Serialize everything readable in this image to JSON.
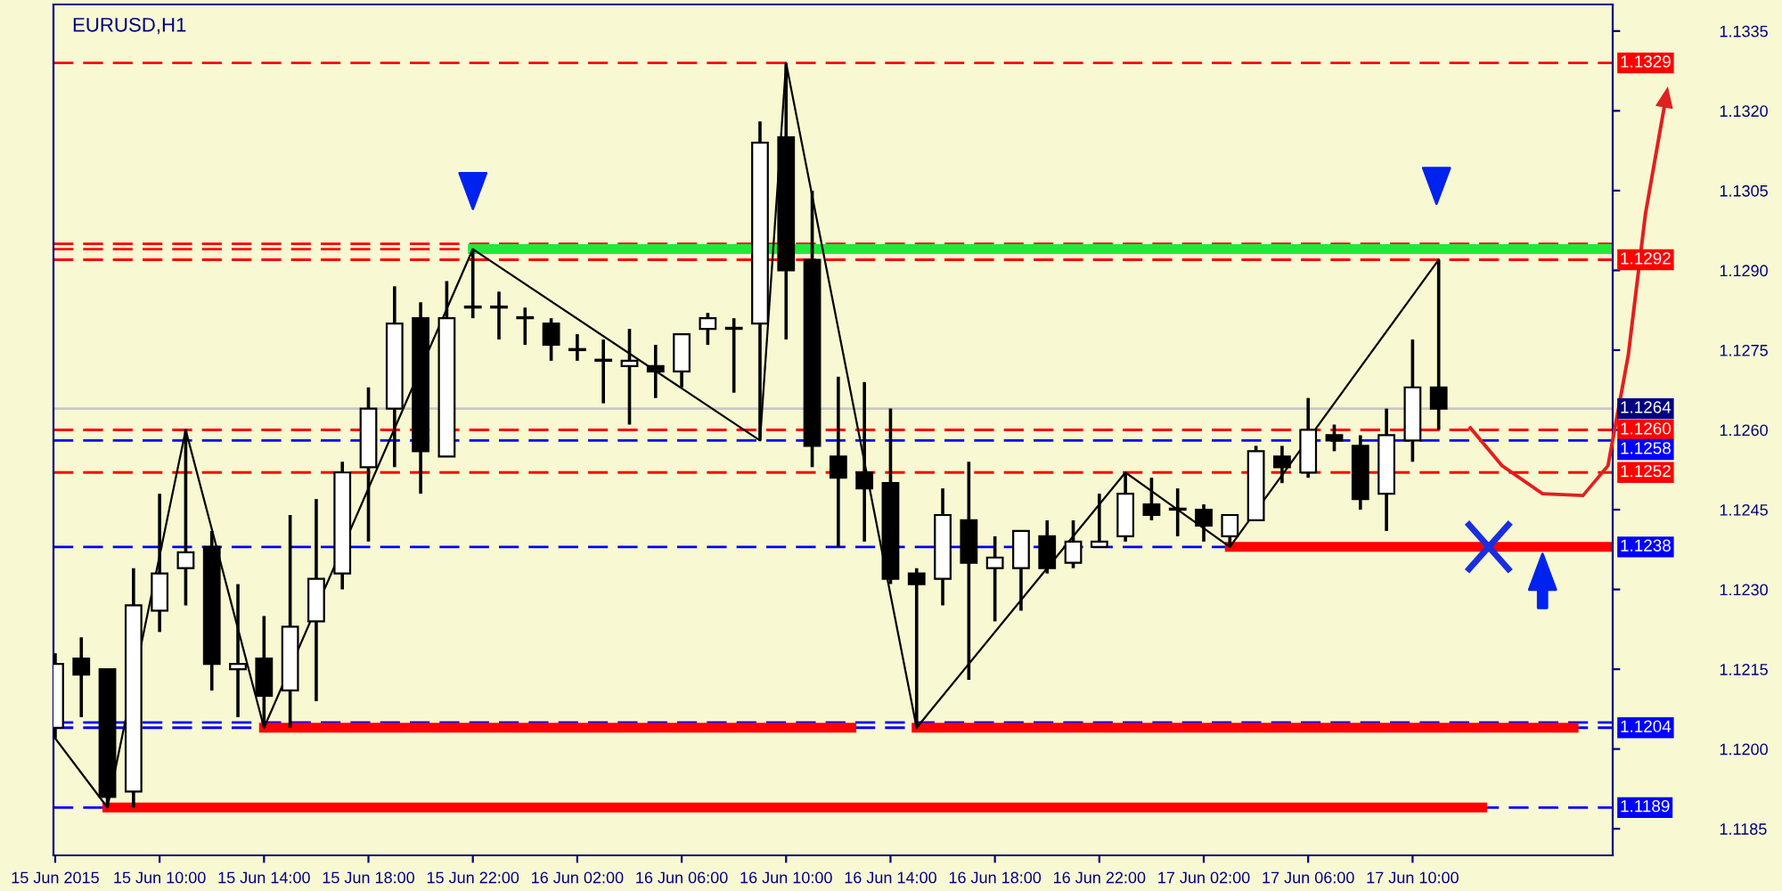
{
  "chart_data": {
    "type": "candlestick",
    "title": "EURUSD,H1",
    "color": "#000000",
    "x": [
      "2015-06-15T06:00",
      "2015-06-15T07:00",
      "2015-06-15T08:00",
      "2015-06-15T09:00",
      "2015-06-15T10:00",
      "2015-06-15T11:00",
      "2015-06-15T12:00",
      "2015-06-15T13:00",
      "2015-06-15T14:00",
      "2015-06-15T15:00",
      "2015-06-15T16:00",
      "2015-06-15T17:00",
      "2015-06-15T18:00",
      "2015-06-15T19:00",
      "2015-06-15T20:00",
      "2015-06-15T21:00",
      "2015-06-15T22:00",
      "2015-06-15T23:00",
      "2015-06-16T00:00",
      "2015-06-16T01:00",
      "2015-06-16T02:00",
      "2015-06-16T03:00",
      "2015-06-16T04:00",
      "2015-06-16T05:00",
      "2015-06-16T06:00",
      "2015-06-16T07:00",
      "2015-06-16T08:00",
      "2015-06-16T09:00",
      "2015-06-16T10:00",
      "2015-06-16T11:00",
      "2015-06-16T12:00",
      "2015-06-16T13:00",
      "2015-06-16T14:00",
      "2015-06-16T15:00",
      "2015-06-16T16:00",
      "2015-06-16T17:00",
      "2015-06-16T18:00",
      "2015-06-16T19:00",
      "2015-06-16T20:00",
      "2015-06-16T21:00",
      "2015-06-16T22:00",
      "2015-06-16T23:00",
      "2015-06-17T00:00",
      "2015-06-17T01:00",
      "2015-06-17T02:00",
      "2015-06-17T03:00",
      "2015-06-17T04:00",
      "2015-06-17T05:00",
      "2015-06-17T06:00",
      "2015-06-17T07:00",
      "2015-06-17T08:00",
      "2015-06-17T09:00",
      "2015-06-17T10:00",
      "2015-06-17T11:00"
    ],
    "ohlc": [
      [
        1.1204,
        1.1218,
        1.1202,
        1.1216
      ],
      [
        1.1217,
        1.1221,
        1.1206,
        1.1214
      ],
      [
        1.1215,
        1.1215,
        1.1189,
        1.1191
      ],
      [
        1.1192,
        1.1234,
        1.1189,
        1.1227
      ],
      [
        1.1226,
        1.1248,
        1.1222,
        1.1233
      ],
      [
        1.1234,
        1.126,
        1.1227,
        1.1237
      ],
      [
        1.1238,
        1.1241,
        1.1211,
        1.1216
      ],
      [
        1.1215,
        1.1231,
        1.1206,
        1.1216
      ],
      [
        1.1217,
        1.1225,
        1.1204,
        1.121
      ],
      [
        1.1211,
        1.1244,
        1.1204,
        1.1223
      ],
      [
        1.1224,
        1.1247,
        1.1209,
        1.1232
      ],
      [
        1.1233,
        1.1254,
        1.123,
        1.1252
      ],
      [
        1.1253,
        1.1268,
        1.1239,
        1.1264
      ],
      [
        1.1264,
        1.1287,
        1.1253,
        1.128
      ],
      [
        1.1281,
        1.1284,
        1.1248,
        1.1256
      ],
      [
        1.1255,
        1.1288,
        1.1255,
        1.1281
      ],
      [
        1.1283,
        1.1294,
        1.1281,
        1.1283
      ],
      [
        1.1283,
        1.1286,
        1.1277,
        1.1283
      ],
      [
        1.1281,
        1.1283,
        1.1276,
        1.1281
      ],
      [
        1.128,
        1.1281,
        1.1273,
        1.1276
      ],
      [
        1.1275,
        1.1278,
        1.1273,
        1.1275
      ],
      [
        1.1273,
        1.1277,
        1.1265,
        1.1273
      ],
      [
        1.1272,
        1.1279,
        1.1261,
        1.1273
      ],
      [
        1.1272,
        1.1276,
        1.1266,
        1.1271
      ],
      [
        1.1271,
        1.1278,
        1.1268,
        1.1278
      ],
      [
        1.1279,
        1.1282,
        1.1276,
        1.1281
      ],
      [
        1.1279,
        1.1281,
        1.1267,
        1.1279
      ],
      [
        1.128,
        1.1318,
        1.1258,
        1.1314
      ],
      [
        1.1315,
        1.1329,
        1.1277,
        1.129
      ],
      [
        1.1292,
        1.1305,
        1.1253,
        1.1257
      ],
      [
        1.1255,
        1.127,
        1.1238,
        1.1251
      ],
      [
        1.1252,
        1.1269,
        1.1239,
        1.1249
      ],
      [
        1.125,
        1.1264,
        1.1231,
        1.1232
      ],
      [
        1.1233,
        1.1234,
        1.1204,
        1.1231
      ],
      [
        1.1232,
        1.1249,
        1.1227,
        1.1244
      ],
      [
        1.1243,
        1.1254,
        1.1213,
        1.1235
      ],
      [
        1.1234,
        1.124,
        1.1224,
        1.1236
      ],
      [
        1.1234,
        1.1241,
        1.1226,
        1.1241
      ],
      [
        1.124,
        1.1243,
        1.1233,
        1.1234
      ],
      [
        1.1235,
        1.1243,
        1.1234,
        1.1239
      ],
      [
        1.1238,
        1.1248,
        1.1238,
        1.1239
      ],
      [
        1.124,
        1.1252,
        1.1239,
        1.1248
      ],
      [
        1.1246,
        1.1251,
        1.1243,
        1.1244
      ],
      [
        1.1245,
        1.1249,
        1.124,
        1.1245
      ],
      [
        1.1245,
        1.1246,
        1.1239,
        1.1242
      ],
      [
        1.124,
        1.1244,
        1.1238,
        1.1244
      ],
      [
        1.1243,
        1.1257,
        1.1243,
        1.1256
      ],
      [
        1.1255,
        1.1257,
        1.125,
        1.1253
      ],
      [
        1.1252,
        1.1266,
        1.1251,
        1.126
      ],
      [
        1.1259,
        1.1261,
        1.1256,
        1.1258
      ],
      [
        1.1257,
        1.1259,
        1.1245,
        1.1247
      ],
      [
        1.1248,
        1.1264,
        1.1241,
        1.1259
      ],
      [
        1.1258,
        1.1277,
        1.1254,
        1.1268
      ],
      [
        1.1268,
        1.1292,
        1.126,
        1.1264
      ]
    ],
    "series": [
      {
        "type": "line",
        "color": "#000000",
        "x": [
          "2015-06-15T06:00",
          "2015-06-15T08:00",
          "2015-06-15T11:00",
          "2015-06-15T14:00",
          "2015-06-15T22:00",
          "2015-06-16T09:00",
          "2015-06-16T10:00",
          "2015-06-16T15:00",
          "2015-06-16T23:00",
          "2015-06-17T03:00",
          "2015-06-17T11:00"
        ],
        "values": [
          1.1202,
          1.1189,
          1.126,
          1.1204,
          1.1294,
          1.1258,
          1.1329,
          1.1204,
          1.1252,
          1.1238,
          1.1292
        ]
      },
      {
        "type": "line",
        "color": "#ff0000",
        "x": [
          "2015-06-15T08:00",
          "2015-06-17T12:40"
        ],
        "values": [
          1.1189,
          1.1189
        ]
      },
      {
        "type": "line",
        "color": "#ff0000",
        "x": [
          "2015-06-15T14:00",
          "2015-06-16T12:30"
        ],
        "values": [
          1.1204,
          1.1204
        ]
      },
      {
        "type": "line",
        "color": "#ff0000",
        "x": [
          "2015-06-16T15:00",
          "2015-06-17T16:10"
        ],
        "values": [
          1.1204,
          1.1204
        ]
      },
      {
        "type": "line",
        "color": "#ff0000",
        "x": [
          "2015-06-17T03:00",
          "2015-06-17T17:40"
        ],
        "values": [
          1.1238,
          1.1238
        ]
      },
      {
        "type": "line",
        "color": "#22e83c",
        "x": [
          "2015-06-15T22:00",
          "2015-06-17T17:40"
        ],
        "values": [
          1.1294,
          1.1294
        ]
      }
    ],
    "ref_lines": [
      {
        "axis": "y",
        "value": 1.1329,
        "label": "1.1329",
        "color": "#ff0000",
        "line_style": "dashed"
      },
      {
        "axis": "y",
        "value": 1.1295,
        "color": "#ff0000",
        "line_style": "dashed"
      },
      {
        "axis": "y",
        "value": 1.1294,
        "color": "#ff0000",
        "line_style": "dashed"
      },
      {
        "axis": "y",
        "value": 1.1292,
        "label": "1.1292",
        "color": "#ff0000",
        "line_style": "dashed"
      },
      {
        "axis": "y",
        "value": 1.1264,
        "label": "1.1264",
        "color": "#c8c8c8",
        "line_style": "solid"
      },
      {
        "axis": "y",
        "value": 1.126,
        "label": "1.1260",
        "color": "#ff0000",
        "line_style": "dashed"
      },
      {
        "axis": "y",
        "value": 1.1258,
        "label": "1.1258",
        "color": "#0000ff",
        "line_style": "dashed"
      },
      {
        "axis": "y",
        "value": 1.1252,
        "label": "1.1252",
        "color": "#ff0000",
        "line_style": "dashed"
      },
      {
        "axis": "y",
        "value": 1.1238,
        "label": "1.1238",
        "color": "#0000ff",
        "line_style": "dashed"
      },
      {
        "axis": "y",
        "value": 1.1205,
        "color": "#0000ff",
        "line_style": "dashed"
      },
      {
        "axis": "y",
        "value": 1.1204,
        "label": "1.1204",
        "color": "#0000ff",
        "line_style": "dashed"
      },
      {
        "axis": "y",
        "value": 1.1189,
        "label": "1.1189",
        "color": "#0000ff",
        "line_style": "dashed"
      }
    ],
    "xlim": [
      "2015-06-15T05:56",
      "2015-06-17T17:40"
    ],
    "xticks": [
      {
        "value": "2015-06-15T06:00",
        "label": "15 Jun 2015"
      },
      {
        "value": "2015-06-15T10:00",
        "label": "15 Jun 10:00"
      },
      {
        "value": "2015-06-15T14:00",
        "label": "15 Jun 14:00"
      },
      {
        "value": "2015-06-15T18:00",
        "label": "15 Jun 18:00"
      },
      {
        "value": "2015-06-15T22:00",
        "label": "15 Jun 22:00"
      },
      {
        "value": "2015-06-16T02:00",
        "label": "16 Jun 02:00"
      },
      {
        "value": "2015-06-16T06:00",
        "label": "16 Jun 06:00"
      },
      {
        "value": "2015-06-16T10:00",
        "label": "16 Jun 10:00"
      },
      {
        "value": "2015-06-16T14:00",
        "label": "16 Jun 14:00"
      },
      {
        "value": "2015-06-16T18:00",
        "label": "16 Jun 18:00"
      },
      {
        "value": "2015-06-16T22:00",
        "label": "16 Jun 22:00"
      },
      {
        "value": "2015-06-17T02:00",
        "label": "17 Jun 02:00"
      },
      {
        "value": "2015-06-17T06:00",
        "label": "17 Jun 06:00"
      },
      {
        "value": "2015-06-17T10:00",
        "label": "17 Jun 10:00"
      }
    ],
    "ylim": [
      1.118,
      1.134
    ],
    "yticks": [
      {
        "value": 1.1185,
        "label": "1.1185"
      },
      {
        "value": 1.12,
        "label": "1.1200"
      },
      {
        "value": 1.1215,
        "label": "1.1215"
      },
      {
        "value": 1.123,
        "label": "1.1230"
      },
      {
        "value": 1.1245,
        "label": "1.1245"
      },
      {
        "value": 1.126,
        "label": "1.1260"
      },
      {
        "value": 1.1275,
        "label": "1.1275"
      },
      {
        "value": 1.129,
        "label": "1.1290"
      },
      {
        "value": 1.1305,
        "label": "1.1305"
      },
      {
        "value": 1.132,
        "label": "1.1320"
      },
      {
        "value": 1.1335,
        "label": "1.1335"
      }
    ]
  }
}
